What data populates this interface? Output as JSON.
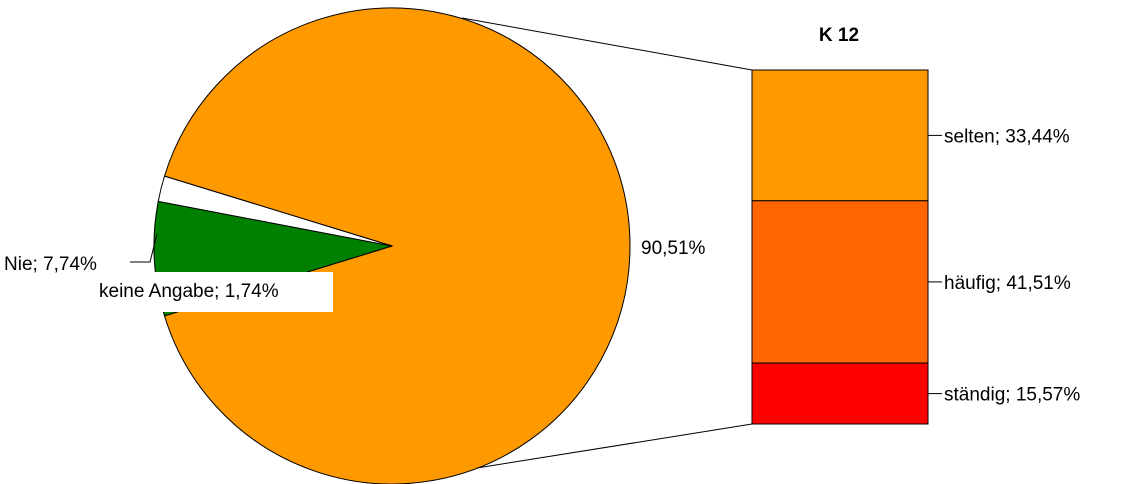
{
  "chart_data": {
    "type": "pie",
    "subtype": "pie-of-bar",
    "pie": {
      "slices": [
        {
          "label": "",
          "value": 90.51,
          "display": "90,51%",
          "color": "#FF9900"
        },
        {
          "label": "Nie",
          "value": 7.74,
          "display": "Nie; 7,74%",
          "color": "#008000"
        },
        {
          "label": "keine Angabe",
          "value": 1.74,
          "display": "keine Angabe; 1,74%",
          "color": "#FFFFFF"
        }
      ]
    },
    "bar": {
      "title": "K 12",
      "segments": [
        {
          "label": "selten",
          "value": 33.44,
          "display": "selten; 33,44%",
          "color": "#FF9900"
        },
        {
          "label": "häufig",
          "value": 41.51,
          "display": "häufig; 41,51%",
          "color": "#FF6600"
        },
        {
          "label": "ständig",
          "value": 15.57,
          "display": "ständig; 15,57%",
          "color": "#FF0000"
        }
      ]
    }
  }
}
